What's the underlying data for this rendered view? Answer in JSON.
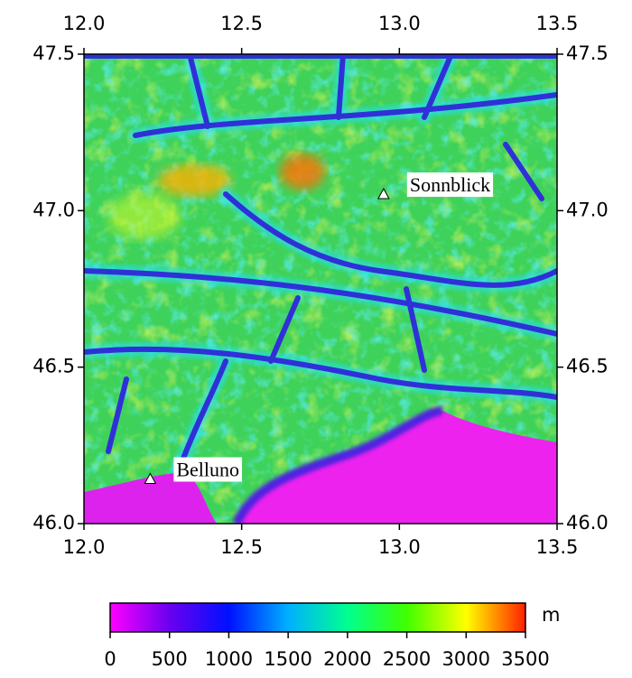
{
  "chart_data": {
    "type": "map",
    "xlim": [
      12.0,
      13.5
    ],
    "ylim": [
      46.0,
      47.5
    ],
    "xticks": [
      {
        "value": 12.0,
        "label": "12.0"
      },
      12.5,
      {
        "value": 13.0,
        "label": "13.0"
      },
      13.5
    ],
    "yticks": [
      {
        "value": 46.0,
        "label": "46.0"
      },
      46.5,
      {
        "value": 47.0,
        "label": "47.0"
      },
      47.5
    ],
    "points": [
      {
        "name": "Sonnblick",
        "x": 12.95,
        "y": 47.05
      },
      {
        "name": "Belluno",
        "x": 12.21,
        "y": 46.14
      }
    ],
    "colorbar": {
      "label": "m",
      "lim": [
        0,
        3500
      ],
      "ticks": [
        0,
        500,
        1000,
        1500,
        2000,
        2500,
        3000,
        3500
      ],
      "colors": [
        "#ff00ff",
        "#6a00f0",
        "#0010ff",
        "#00b0ff",
        "#00ff90",
        "#40ff00",
        "#ffff00",
        "#ff2000"
      ]
    }
  }
}
